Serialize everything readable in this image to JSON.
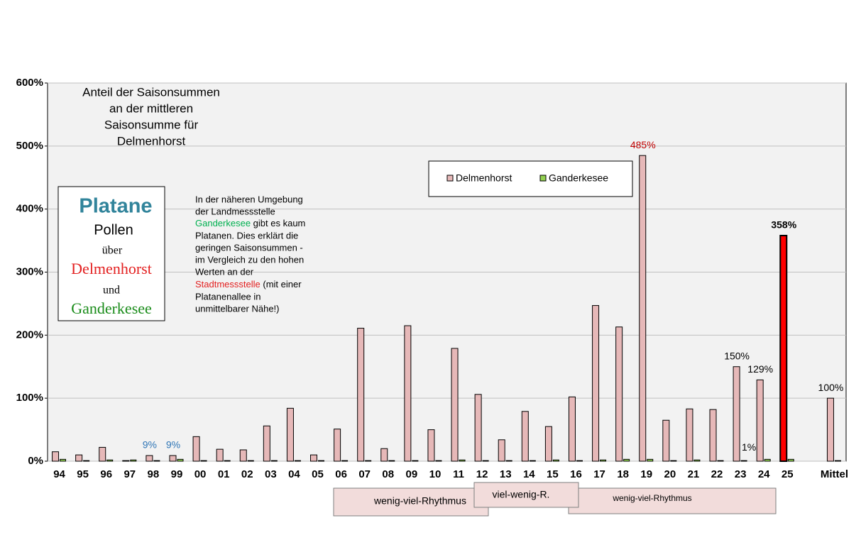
{
  "chart_data": {
    "type": "bar",
    "title_lines": [
      "Anteil der Saisonsummen",
      "an der mittleren",
      "Saisonsumme  für",
      "Delmenhorst"
    ],
    "info_box": [
      "Platane",
      "Pollen",
      "über",
      "Delmenhorst",
      "und",
      "Ganderkesee"
    ],
    "note": [
      "In der näheren Umgebung",
      "der Landmessstelle",
      "Ganderkesee",
      " gibt es kaum",
      "Platanen.  Dies erklärt die",
      "geringen  Saisonsummen -",
      "im Vergleich  zu den hohen",
      "Werten an der",
      "Stadtmessstelle",
      " (mit einer",
      "Platanenallee  in",
      "unmittelbarer Nähe!)"
    ],
    "rhythm_bands": [
      "wenig-viel-Rhythmus",
      "viel-wenig-R.",
      "wenig-viel-Rhythmus"
    ],
    "categories": [
      "94",
      "95",
      "96",
      "97",
      "98",
      "99",
      "00",
      "01",
      "02",
      "03",
      "04",
      "05",
      "06",
      "07",
      "08",
      "09",
      "10",
      "11",
      "12",
      "13",
      "14",
      "15",
      "16",
      "17",
      "18",
      "19",
      "20",
      "21",
      "22",
      "23",
      "24",
      "25",
      null,
      "Mittel"
    ],
    "series": [
      {
        "name": "Delmenhorst",
        "color": "#e6b8b8",
        "colors": [
          "#e6b8b8",
          "#e6b8b8",
          "#e6b8b8",
          "#e6b8b8",
          "#e6b8b8",
          "#e6b8b8",
          "#e6b8b8",
          "#e6b8b8",
          "#e6b8b8",
          "#e6b8b8",
          "#e6b8b8",
          "#e6b8b8",
          "#e6b8b8",
          "#e6b8b8",
          "#e6b8b8",
          "#e6b8b8",
          "#e6b8b8",
          "#e6b8b8",
          "#e6b8b8",
          "#e6b8b8",
          "#e6b8b8",
          "#e6b8b8",
          "#e6b8b8",
          "#e6b8b8",
          "#e6b8b8",
          "#e6b8b8",
          "#e6b8b8",
          "#e6b8b8",
          "#e6b8b8",
          "#e6b8b8",
          "#e6b8b8",
          "#ff0000",
          null,
          "#e6b8b8"
        ],
        "values": [
          15,
          10,
          22,
          1,
          9,
          9,
          39,
          19,
          18,
          56,
          84,
          10,
          51,
          211,
          20,
          215,
          50,
          179,
          106,
          34,
          79,
          55,
          102,
          247,
          213,
          485,
          65,
          83,
          82,
          150,
          129,
          358,
          null,
          100
        ],
        "value_labels": [
          null,
          null,
          null,
          null,
          "9%",
          "9%",
          null,
          null,
          null,
          null,
          null,
          null,
          null,
          null,
          null,
          null,
          null,
          null,
          null,
          null,
          null,
          null,
          null,
          null,
          null,
          "485%",
          null,
          null,
          null,
          "150%",
          "129%",
          "358%",
          null,
          "100%"
        ]
      },
      {
        "name": "Ganderkesee",
        "color": "#92d050",
        "values": [
          3,
          1,
          2,
          2,
          1,
          3,
          1,
          1,
          1,
          1,
          1,
          1,
          1,
          1,
          1,
          1,
          1,
          2,
          1,
          1,
          1,
          2,
          1,
          2,
          3,
          3,
          1,
          2,
          1,
          1,
          3,
          3,
          null,
          1
        ],
        "value_labels": [
          null,
          null,
          null,
          null,
          null,
          null,
          null,
          null,
          null,
          null,
          null,
          null,
          null,
          null,
          null,
          null,
          null,
          null,
          null,
          null,
          null,
          null,
          null,
          null,
          null,
          null,
          null,
          null,
          null,
          "1%",
          null,
          null,
          null,
          null
        ]
      }
    ],
    "ylim": [
      0,
      600
    ],
    "yticks": [
      {
        "value": 0,
        "label": "0%"
      },
      {
        "value": 100,
        "label": "100%"
      },
      {
        "value": 200,
        "label": "200%"
      },
      {
        "value": 300,
        "label": "300%"
      },
      {
        "value": 400,
        "label": "400%"
      },
      {
        "value": 500,
        "label": "500%"
      },
      {
        "value": 600,
        "label": "600%"
      }
    ],
    "grid": true
  }
}
